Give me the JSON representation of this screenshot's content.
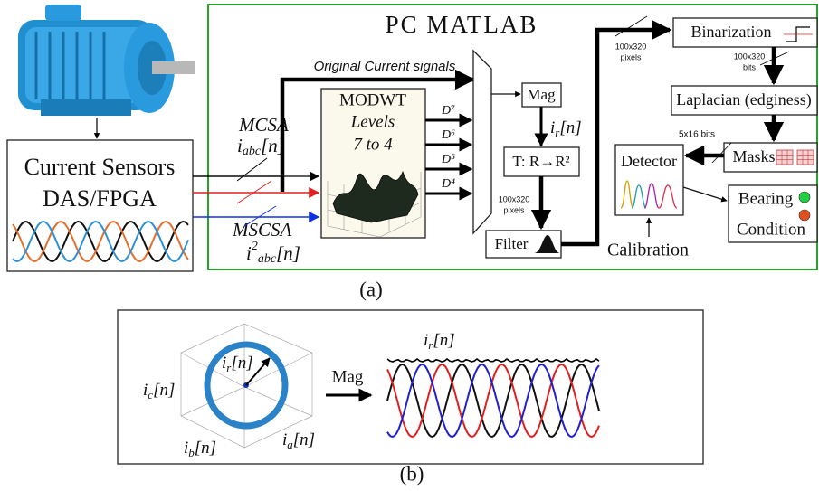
{
  "header": {
    "title": "PC MATLAB"
  },
  "motor_section": {
    "sensors_line1": "Current Sensors",
    "sensors_line2": "DAS/FPGA"
  },
  "inputs": {
    "mcsa": "MCSA",
    "mcsa_signal": {
      "base": "i",
      "sub": "abc",
      "rest": "[n]"
    },
    "mscsa": "MSCSA",
    "mscsa_signal": {
      "base": "i",
      "sup": "2",
      "sub": "abc",
      "rest": "[n]"
    },
    "original": "Original Current signals"
  },
  "modwt": {
    "title": "MODWT",
    "line2": "Levels",
    "line3": "7 to 4",
    "outputs": [
      "D⁷",
      "D⁶",
      "D⁵",
      "D⁴"
    ]
  },
  "pipeline": {
    "mag": "Mag",
    "mag_output": {
      "base": "i",
      "sub": "r",
      "rest": "[n]"
    },
    "transform": "T: R→R²",
    "size1": [
      "100x320",
      "pixels"
    ],
    "filter": "Filter",
    "size2": [
      "100x320",
      "pixels"
    ],
    "binarization": "Binarization",
    "size3": [
      "100x320",
      "bits"
    ],
    "laplacian": "Laplacian (edginess)",
    "size4": "5x16 bits",
    "masks": "Masks",
    "detector": "Detector",
    "calibration": "Calibration",
    "result": [
      "Bearing",
      "Condition"
    ]
  },
  "caption_a": "(a)",
  "part_b": {
    "vector": {
      "base": "i",
      "sub": "r",
      "rest": "[n]"
    },
    "axis_c": {
      "base": "i",
      "sub": "c",
      "rest": "[n]"
    },
    "axis_b": {
      "base": "i",
      "sub": "b",
      "rest": "[n]"
    },
    "axis_a": {
      "base": "i",
      "sub": "a",
      "rest": "[n]"
    },
    "mag": "Mag",
    "envelope": {
      "base": "i",
      "sub": "r",
      "rest": "[n]"
    }
  },
  "caption_b": "(b)"
}
